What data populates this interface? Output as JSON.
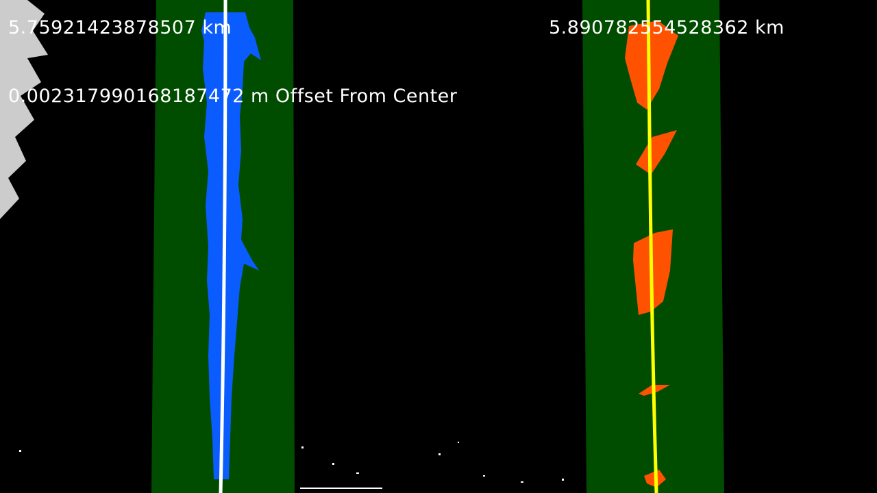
{
  "overlay": {
    "left_curvature": "5.75921423878507 km",
    "right_curvature": "5.890782554528362 km",
    "center_offset": "0.002317990168187472 m Offset From Center"
  },
  "colors": {
    "background": "#000000",
    "lane_window": "#004d00",
    "left_lane_pixels": "#0a5cff",
    "right_lane_pixels": "#ff5200",
    "left_fit_line": "#ffffff",
    "right_fit_line": "#ffff00",
    "overlay_text": "#ffffff"
  }
}
